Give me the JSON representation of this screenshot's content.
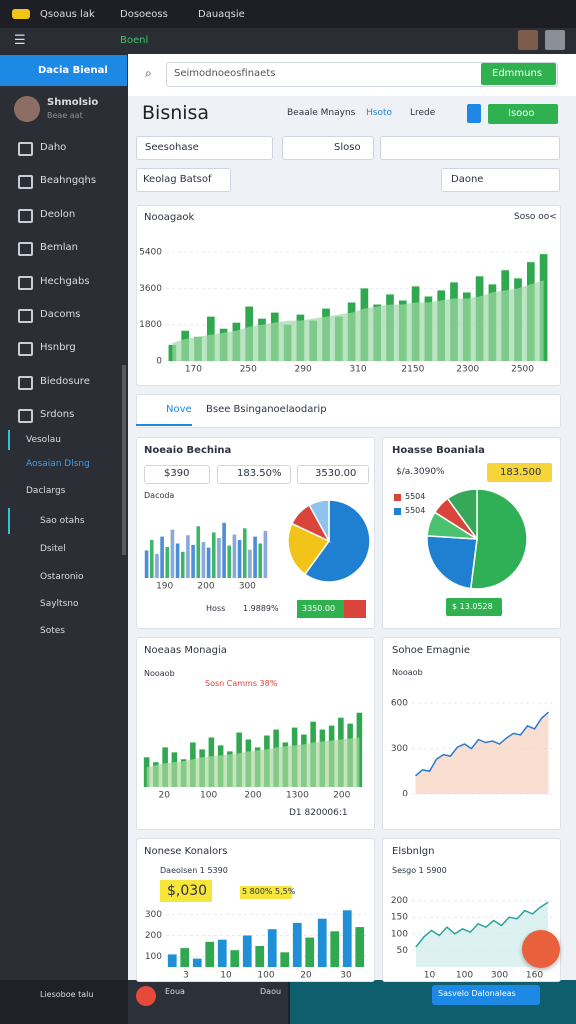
{
  "browser": {
    "tabs": [
      "Qsoaus lak",
      "Dosoeoss",
      "Dauaqsie"
    ],
    "toolbar_label": "Boenl"
  },
  "sidebar": {
    "header": "Dacia Bienal",
    "profile": {
      "name": "Shmolsio",
      "role": "Beae aat"
    },
    "menu": [
      "Daho",
      "Beahngqhs",
      "Deolon",
      "Bemlan",
      "Hechgabs",
      "Dacoms",
      "Hsnbrg",
      "Biedosure",
      "Srdons"
    ],
    "section": [
      "Vesolau",
      "Aosaian Dlsng",
      "Daclargs",
      "Sao otahs",
      "Dsitel",
      "Ostaronio",
      "Sayltsno",
      "Sotes"
    ]
  },
  "taskbar": {
    "items": [
      "Liesoboe talu",
      "Eoua",
      "Daou"
    ],
    "button": "Sasvelo Dalonaleas"
  },
  "main": {
    "search": {
      "placeholder": "Seimodnoeosfinaets",
      "button": "Edmmuns"
    },
    "title": "Bisnisa",
    "header_links": [
      "Beaale Mnayns",
      "Hsoto",
      "Lrede"
    ],
    "header_button": "Isooo",
    "filters": [
      "Seesohase",
      "Sloso",
      "Keolag Batsof",
      "Daone"
    ],
    "main_chart": {
      "title": "Nooagaok",
      "note": "Soso oo<",
      "chart": {
        "type": "combo",
        "ylim": [
          0,
          6000
        ],
        "yticks": [
          0,
          1800,
          3600,
          5400
        ],
        "xlabels": [
          "170",
          "250",
          "290",
          "310",
          "2150",
          "2300",
          "2500"
        ],
        "series": [
          {
            "color": "#2fa84f",
            "values": [
              800,
              1500,
              1200,
              2200,
              1600,
              1900,
              2700,
              2100,
              2400,
              1800,
              2300,
              2000,
              2600,
              2200,
              2900,
              3600,
              2800,
              3300,
              3000,
              3700,
              3200,
              3500,
              3900,
              3400,
              4200,
              3800,
              4500,
              4100,
              4900,
              5300
            ]
          },
          {
            "color": "#9fd8a6",
            "values": [
              900,
              1100,
              1200,
              1300,
              1400,
              1500,
              1700,
              1800,
              1900,
              2000,
              2000,
              2100,
              2200,
              2300,
              2400,
              2600,
              2700,
              2800,
              2800,
              2900,
              2900,
              3000,
              3100,
              3100,
              3200,
              3400,
              3500,
              3600,
              3800,
              4000
            ]
          }
        ]
      }
    },
    "tabs": [
      "Nove",
      "Bsee Bsinganoelaodarip"
    ],
    "card_a": {
      "title": "Noeaio Bechina",
      "stats": [
        "$390",
        "183.50%",
        "3530.00"
      ],
      "label": "Dacoda",
      "bars": {
        "type": "bar",
        "ylim": [
          0,
          100
        ],
        "xlabels": [
          "190",
          "200",
          "300"
        ],
        "colors": [
          "#4c8fd6",
          "#3fb56a",
          "#8aa9d8"
        ],
        "values": [
          40,
          55,
          35,
          60,
          45,
          70,
          50,
          38,
          62,
          48,
          75,
          52,
          44,
          66,
          58,
          80,
          47,
          63,
          55,
          72,
          41,
          60,
          50,
          68
        ]
      },
      "pie": {
        "type": "pie",
        "values": [
          60,
          22,
          10,
          8
        ],
        "colors": [
          "#1f7fd1",
          "#f2c318",
          "#d9453b",
          "#8fc3ee"
        ]
      },
      "footer": [
        "Hoss",
        "1.9889%",
        "3350.00"
      ]
    },
    "card_b": {
      "title": "Hoasse Boaniala",
      "badge": "183.500",
      "legend": [
        "$/a.3090%",
        "5504",
        "5504"
      ],
      "pie": {
        "type": "pie",
        "values": [
          52,
          24,
          8,
          6,
          10
        ],
        "colors": [
          "#2fb056",
          "#1f7fd1",
          "#4bc26f",
          "#d9453b",
          "#37a85a"
        ]
      },
      "button": "$ 13.0528"
    },
    "card_c": {
      "title": "Noeaas Monagia",
      "note": "Nooaob",
      "legend": "Sosn Camms 38%",
      "chart": {
        "type": "combo",
        "ylim": [
          0,
          100
        ],
        "xlabels": [
          "20",
          "100",
          "200",
          "1300",
          "200"
        ],
        "series": [
          {
            "color": "#2fa84f",
            "values": [
              30,
              25,
              40,
              35,
              28,
              45,
              38,
              50,
              42,
              36,
              55,
              48,
              40,
              52,
              58,
              45,
              60,
              53,
              66,
              58,
              62,
              70,
              64,
              75
            ]
          },
          {
            "color": "#a9d9a0",
            "values": [
              20,
              22,
              24,
              25,
              26,
              28,
              30,
              31,
              32,
              33,
              34,
              36,
              37,
              38,
              40,
              41,
              42,
              43,
              45,
              46,
              47,
              48,
              49,
              50
            ]
          }
        ]
      },
      "footer": "D1 820006:1"
    },
    "card_d": {
      "title": "Sohoe Emagnie",
      "note": "Nooaob",
      "chart": {
        "type": "area_line",
        "ylim": [
          0,
          700
        ],
        "yticks": [
          0,
          300,
          600
        ],
        "color": "#2a7bd0",
        "fill": "#f7d2bd",
        "values": [
          120,
          160,
          150,
          230,
          260,
          250,
          310,
          330,
          300,
          360,
          340,
          350,
          330,
          370,
          400,
          390,
          450,
          430,
          500,
          540
        ]
      }
    },
    "card_e": {
      "title": "Nonese Konalors",
      "note": "Daeolsen 1 5390",
      "stats": [
        "$,030",
        "5 800% 5,5%"
      ],
      "chart": {
        "type": "bar",
        "ylim": [
          50,
          350
        ],
        "yticks": [
          100,
          200,
          300
        ],
        "xlabels": [
          "3",
          "10",
          "100",
          "20",
          "30"
        ],
        "colors": [
          "#1f8fd6",
          "#2fa84f"
        ],
        "values": [
          110,
          140,
          90,
          170,
          180,
          130,
          200,
          150,
          230,
          120,
          260,
          190,
          280,
          220,
          320,
          240
        ]
      }
    },
    "card_f": {
      "title": "Elsbnlgn",
      "note": "Sesgo 1 5900",
      "chart": {
        "type": "area_line",
        "ylim": [
          0,
          250
        ],
        "yticks": [
          50,
          100,
          150,
          200
        ],
        "xlabels": [
          "10",
          "100",
          "300",
          "160"
        ],
        "color": "#2aa39b",
        "fill": "#cfece9",
        "values": [
          60,
          90,
          110,
          95,
          120,
          100,
          115,
          105,
          130,
          120,
          140,
          125,
          150,
          145,
          170,
          160,
          180,
          195
        ]
      }
    }
  }
}
